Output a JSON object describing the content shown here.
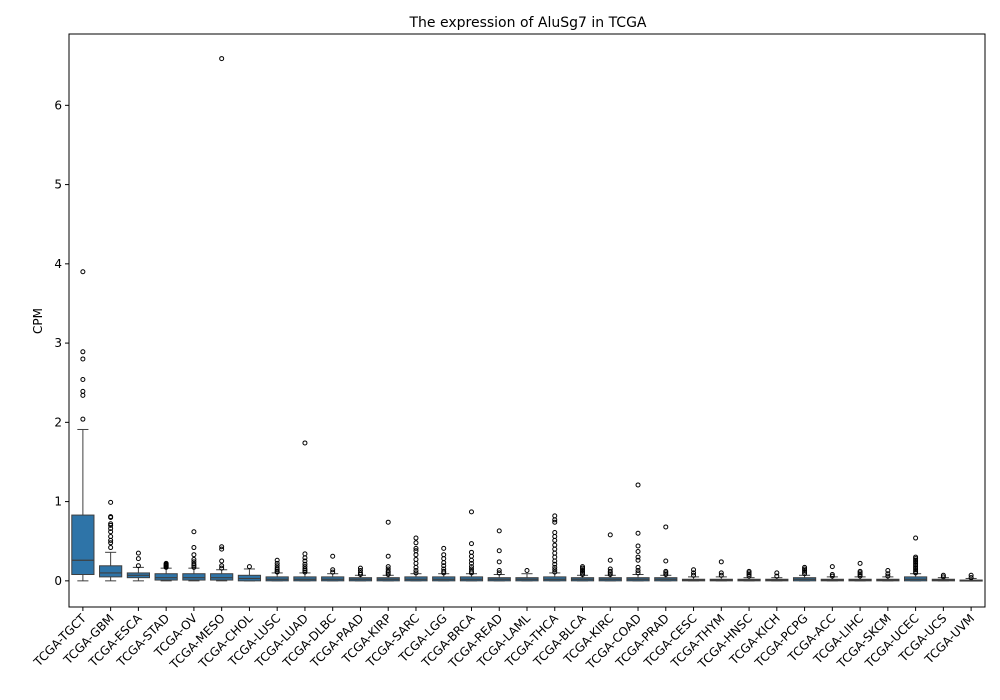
{
  "chart_data": {
    "type": "box",
    "title": "The expression of AluSg7 in TCGA",
    "ylabel": "CPM",
    "xlabel": "",
    "ylim": [
      -0.33,
      6.9
    ],
    "yticks": [
      0,
      1,
      2,
      3,
      4,
      5,
      6
    ],
    "grid": false,
    "legend": "none",
    "box_color": "#2e74a8",
    "categories": [
      "TCGA-TGCT",
      "TCGA-GBM",
      "TCGA-ESCA",
      "TCGA-STAD",
      "TCGA-OV",
      "TCGA-MESO",
      "TCGA-CHOL",
      "TCGA-LUSC",
      "TCGA-LUAD",
      "TCGA-DLBC",
      "TCGA-PAAD",
      "TCGA-KIRP",
      "TCGA-SARC",
      "TCGA-LGG",
      "TCGA-BRCA",
      "TCGA-READ",
      "TCGA-LAML",
      "TCGA-THCA",
      "TCGA-BLCA",
      "TCGA-KIRC",
      "TCGA-COAD",
      "TCGA-PRAD",
      "TCGA-CESC",
      "TCGA-THYM",
      "TCGA-HNSC",
      "TCGA-KICH",
      "TCGA-PCPG",
      "TCGA-ACC",
      "TCGA-LIHC",
      "TCGA-SKCM",
      "TCGA-UCEC",
      "TCGA-UCS",
      "TCGA-UVM"
    ],
    "boxes": [
      {
        "whislo": 0.0,
        "q1": 0.08,
        "med": 0.26,
        "q3": 0.83,
        "whishi": 1.91,
        "fliers": [
          2.04,
          2.34,
          2.39,
          2.54,
          2.8,
          2.89,
          3.9
        ]
      },
      {
        "whislo": 0.0,
        "q1": 0.05,
        "med": 0.1,
        "q3": 0.19,
        "whishi": 0.36,
        "fliers": [
          0.42,
          0.48,
          0.51,
          0.56,
          0.62,
          0.66,
          0.7,
          0.72,
          0.8,
          0.81,
          0.99
        ]
      },
      {
        "whislo": 0.0,
        "q1": 0.04,
        "med": 0.07,
        "q3": 0.1,
        "whishi": 0.17,
        "fliers": [
          0.19,
          0.28,
          0.35
        ]
      },
      {
        "whislo": 0.0,
        "q1": 0.01,
        "med": 0.04,
        "q3": 0.09,
        "whishi": 0.16,
        "fliers": [
          0.17,
          0.18,
          0.19,
          0.2,
          0.21,
          0.22
        ]
      },
      {
        "whislo": 0.0,
        "q1": 0.01,
        "med": 0.04,
        "q3": 0.09,
        "whishi": 0.16,
        "fliers": [
          0.17,
          0.19,
          0.21,
          0.24,
          0.27,
          0.33,
          0.42,
          0.62
        ]
      },
      {
        "whislo": 0.0,
        "q1": 0.01,
        "med": 0.04,
        "q3": 0.09,
        "whishi": 0.14,
        "fliers": [
          0.16,
          0.19,
          0.25,
          0.4,
          0.43,
          6.59
        ]
      },
      {
        "whislo": 0.0,
        "q1": 0.0,
        "med": 0.03,
        "q3": 0.07,
        "whishi": 0.15,
        "fliers": [
          0.18
        ]
      },
      {
        "whislo": 0.0,
        "q1": 0.0,
        "med": 0.02,
        "q3": 0.05,
        "whishi": 0.1,
        "fliers": [
          0.11,
          0.12,
          0.14,
          0.16,
          0.19,
          0.22,
          0.26
        ]
      },
      {
        "whislo": 0.0,
        "q1": 0.0,
        "med": 0.02,
        "q3": 0.05,
        "whishi": 0.1,
        "fliers": [
          0.11,
          0.13,
          0.15,
          0.18,
          0.21,
          0.25,
          0.29,
          0.34,
          1.74
        ]
      },
      {
        "whislo": 0.0,
        "q1": 0.0,
        "med": 0.02,
        "q3": 0.05,
        "whishi": 0.09,
        "fliers": [
          0.11,
          0.14,
          0.31
        ]
      },
      {
        "whislo": 0.0,
        "q1": 0.0,
        "med": 0.02,
        "q3": 0.04,
        "whishi": 0.07,
        "fliers": [
          0.08,
          0.1,
          0.13,
          0.16
        ]
      },
      {
        "whislo": 0.0,
        "q1": 0.0,
        "med": 0.02,
        "q3": 0.04,
        "whishi": 0.07,
        "fliers": [
          0.08,
          0.1,
          0.12,
          0.15,
          0.18,
          0.31,
          0.74
        ]
      },
      {
        "whislo": 0.0,
        "q1": 0.0,
        "med": 0.02,
        "q3": 0.05,
        "whishi": 0.09,
        "fliers": [
          0.1,
          0.13,
          0.17,
          0.22,
          0.27,
          0.33,
          0.38,
          0.41,
          0.48,
          0.54
        ]
      },
      {
        "whislo": 0.0,
        "q1": 0.0,
        "med": 0.02,
        "q3": 0.05,
        "whishi": 0.09,
        "fliers": [
          0.1,
          0.12,
          0.15,
          0.19,
          0.23,
          0.28,
          0.33,
          0.41
        ]
      },
      {
        "whislo": 0.0,
        "q1": 0.0,
        "med": 0.02,
        "q3": 0.05,
        "whishi": 0.09,
        "fliers": [
          0.1,
          0.12,
          0.15,
          0.18,
          0.22,
          0.26,
          0.31,
          0.36,
          0.47,
          0.87
        ]
      },
      {
        "whislo": 0.0,
        "q1": 0.0,
        "med": 0.02,
        "q3": 0.04,
        "whishi": 0.08,
        "fliers": [
          0.1,
          0.13,
          0.24,
          0.38,
          0.63
        ]
      },
      {
        "whislo": 0.0,
        "q1": 0.0,
        "med": 0.02,
        "q3": 0.04,
        "whishi": 0.09,
        "fliers": [
          0.13
        ]
      },
      {
        "whislo": 0.0,
        "q1": 0.0,
        "med": 0.02,
        "q3": 0.05,
        "whishi": 0.1,
        "fliers": [
          0.11,
          0.14,
          0.17,
          0.21,
          0.25,
          0.3,
          0.35,
          0.4,
          0.45,
          0.51,
          0.56,
          0.61,
          0.74,
          0.77,
          0.82
        ]
      },
      {
        "whislo": 0.0,
        "q1": 0.0,
        "med": 0.02,
        "q3": 0.04,
        "whishi": 0.07,
        "fliers": [
          0.08,
          0.1,
          0.12,
          0.14,
          0.16,
          0.18
        ]
      },
      {
        "whislo": 0.0,
        "q1": 0.0,
        "med": 0.02,
        "q3": 0.04,
        "whishi": 0.07,
        "fliers": [
          0.08,
          0.1,
          0.12,
          0.15,
          0.26,
          0.58
        ]
      },
      {
        "whislo": 0.0,
        "q1": 0.0,
        "med": 0.02,
        "q3": 0.04,
        "whishi": 0.08,
        "fliers": [
          0.1,
          0.13,
          0.17,
          0.26,
          0.3,
          0.37,
          0.44,
          0.6,
          1.21
        ]
      },
      {
        "whislo": 0.0,
        "q1": 0.0,
        "med": 0.02,
        "q3": 0.04,
        "whishi": 0.07,
        "fliers": [
          0.08,
          0.1,
          0.12,
          0.25,
          0.68
        ]
      },
      {
        "whislo": 0.0,
        "q1": 0.0,
        "med": 0.01,
        "q3": 0.02,
        "whishi": 0.05,
        "fliers": [
          0.07,
          0.1,
          0.14
        ]
      },
      {
        "whislo": 0.0,
        "q1": 0.0,
        "med": 0.01,
        "q3": 0.02,
        "whishi": 0.05,
        "fliers": [
          0.07,
          0.1,
          0.24
        ]
      },
      {
        "whislo": 0.0,
        "q1": 0.0,
        "med": 0.01,
        "q3": 0.02,
        "whishi": 0.04,
        "fliers": [
          0.06,
          0.08,
          0.1,
          0.12
        ]
      },
      {
        "whislo": 0.0,
        "q1": 0.0,
        "med": 0.01,
        "q3": 0.02,
        "whishi": 0.04,
        "fliers": [
          0.06,
          0.1
        ]
      },
      {
        "whislo": 0.0,
        "q1": 0.0,
        "med": 0.02,
        "q3": 0.04,
        "whishi": 0.07,
        "fliers": [
          0.09,
          0.11,
          0.13,
          0.15,
          0.17
        ]
      },
      {
        "whislo": 0.0,
        "q1": 0.0,
        "med": 0.01,
        "q3": 0.02,
        "whishi": 0.05,
        "fliers": [
          0.06,
          0.08,
          0.18
        ]
      },
      {
        "whislo": 0.0,
        "q1": 0.0,
        "med": 0.01,
        "q3": 0.02,
        "whishi": 0.05,
        "fliers": [
          0.06,
          0.08,
          0.1,
          0.12,
          0.22
        ]
      },
      {
        "whislo": 0.0,
        "q1": 0.0,
        "med": 0.01,
        "q3": 0.02,
        "whishi": 0.05,
        "fliers": [
          0.06,
          0.09,
          0.13
        ]
      },
      {
        "whislo": 0.0,
        "q1": 0.0,
        "med": 0.02,
        "q3": 0.05,
        "whishi": 0.09,
        "fliers": [
          0.1,
          0.12,
          0.14,
          0.16,
          0.18,
          0.2,
          0.22,
          0.24,
          0.26,
          0.28,
          0.3,
          0.54
        ]
      },
      {
        "whislo": 0.0,
        "q1": 0.0,
        "med": 0.01,
        "q3": 0.02,
        "whishi": 0.04,
        "fliers": [
          0.05,
          0.07
        ]
      },
      {
        "whislo": 0.0,
        "q1": 0.0,
        "med": 0.0,
        "q3": 0.01,
        "whishi": 0.03,
        "fliers": [
          0.04,
          0.07
        ]
      }
    ]
  }
}
